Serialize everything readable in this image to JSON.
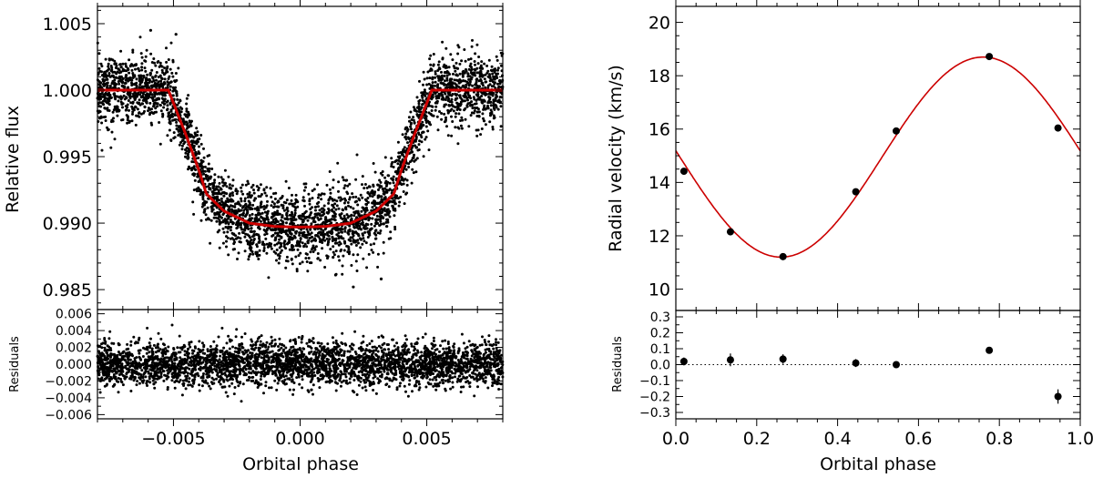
{
  "colors": {
    "axis": "#000000",
    "model": "#cc0000",
    "points": "#000000"
  },
  "chart_data": [
    {
      "id": "transit",
      "type": "scatter",
      "main": {
        "xlabel": "Orbital phase",
        "ylabel": "Relative flux",
        "xlim": [
          -0.008,
          0.008
        ],
        "ylim": [
          0.9835,
          1.0063
        ],
        "xticks": [
          -0.005,
          0.0,
          0.005
        ],
        "xtick_labels": [
          "−0.005",
          "0.000",
          "0.005"
        ],
        "yticks": [
          0.985,
          0.99,
          0.995,
          1.0,
          1.005
        ],
        "ytick_labels": [
          "0.985",
          "0.990",
          "0.995",
          "1.000",
          "1.005"
        ],
        "model": {
          "name": "transit model",
          "x": [
            -0.008,
            -0.0052,
            -0.0045,
            -0.004,
            -0.0037,
            -0.003,
            -0.002,
            -0.001,
            0.0,
            0.001,
            0.002,
            0.003,
            0.0037,
            0.004,
            0.0045,
            0.0052,
            0.008
          ],
          "y": [
            1.0,
            1.0,
            0.9966,
            0.994,
            0.9922,
            0.9909,
            0.99,
            0.98975,
            0.9897,
            0.98975,
            0.99,
            0.9909,
            0.9922,
            0.994,
            0.9966,
            1.0,
            1.0
          ]
        },
        "scatter": {
          "n_points": 3600,
          "noise_sigma": 0.0013,
          "outlier_points": [
            [
              -0.0049,
              1.0042
            ],
            [
              -0.0059,
              1.0045
            ],
            [
              0.0021,
              0.9852
            ],
            [
              0.0014,
              0.9861
            ],
            [
              0.0032,
              0.9858
            ]
          ]
        }
      },
      "residuals": {
        "ylabel": "Residuals",
        "ylim": [
          -0.0065,
          0.0065
        ],
        "yticks": [
          -0.006,
          -0.004,
          -0.002,
          0.0,
          0.002,
          0.004,
          0.006
        ],
        "ytick_labels": [
          "−0.006",
          "−0.004",
          "−0.002",
          "0.000",
          "0.002",
          "0.004",
          "0.006"
        ],
        "n_points": 3600,
        "noise_sigma": 0.0013
      }
    },
    {
      "id": "rv",
      "type": "scatter",
      "main": {
        "xlabel": "Orbital phase",
        "ylabel": "Radial velocity  (km/s)",
        "xlim": [
          0.0,
          1.0
        ],
        "ylim": [
          9.2,
          20.6
        ],
        "xticks": [
          0.0,
          0.2,
          0.4,
          0.6,
          0.8,
          1.0
        ],
        "xtick_labels": [
          "0.0",
          "0.2",
          "0.4",
          "0.6",
          "0.8",
          "1.0"
        ],
        "yticks": [
          10,
          12,
          14,
          16,
          18,
          20
        ],
        "ytick_labels": [
          "10",
          "12",
          "14",
          "16",
          "18",
          "20"
        ],
        "model": {
          "name": "RV fit",
          "gamma": 14.95,
          "K": 3.75,
          "phase_of_max": 0.76
        },
        "points": {
          "x": [
            0.02,
            0.135,
            0.265,
            0.445,
            0.545,
            0.775,
            0.945
          ],
          "y": [
            14.42,
            12.15,
            11.22,
            13.65,
            15.93,
            18.72,
            16.04
          ]
        }
      },
      "residuals": {
        "ylabel": "Residuals",
        "ylim": [
          -0.34,
          0.34
        ],
        "yticks": [
          -0.3,
          -0.2,
          -0.1,
          0.0,
          0.1,
          0.2,
          0.3
        ],
        "ytick_labels": [
          "−0.3",
          "−0.2",
          "−0.1",
          "0.0",
          "0.1",
          "0.2",
          "0.3"
        ],
        "x": [
          0.02,
          0.135,
          0.265,
          0.445,
          0.545,
          0.775,
          0.945
        ],
        "y": [
          0.02,
          0.03,
          0.035,
          0.01,
          0.0,
          0.09,
          -0.2
        ],
        "err": [
          0.025,
          0.04,
          0.03,
          0.025,
          0.02,
          0.015,
          0.045
        ]
      }
    }
  ]
}
